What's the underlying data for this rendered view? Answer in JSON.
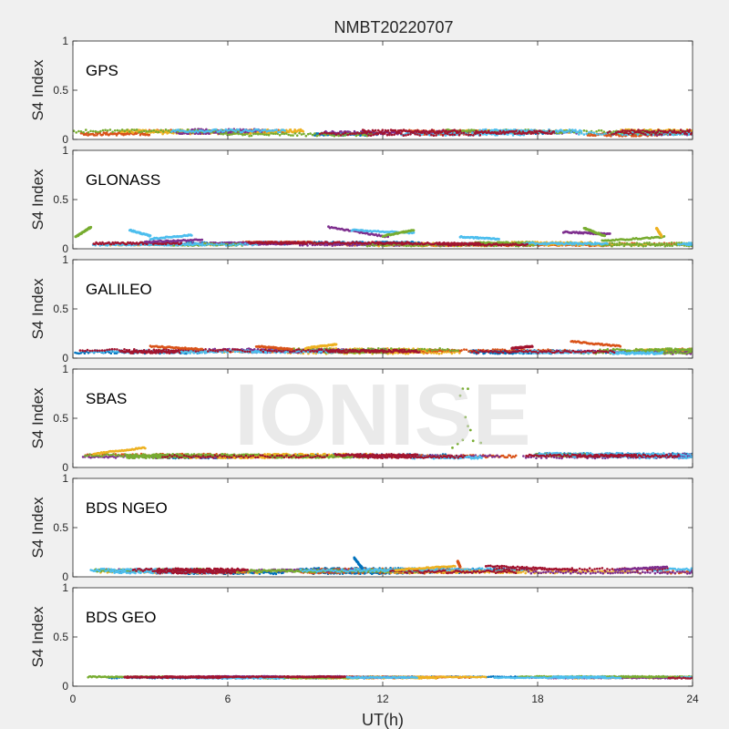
{
  "watermark": "IONISE",
  "chart_data": {
    "type": "scatter",
    "title": "NMBT20220707",
    "xlabel": "UT(h)",
    "xlim": [
      0,
      24
    ],
    "xticks": [
      0,
      6,
      12,
      18,
      24
    ],
    "colors": [
      "#0072BD",
      "#D95319",
      "#EDB120",
      "#7E2F8E",
      "#77AC30",
      "#4DBEEE",
      "#A2142F"
    ],
    "panels": [
      {
        "label": "GPS",
        "ylabel": "S4 Index",
        "ylim": [
          0,
          1
        ],
        "yticks": [
          0,
          0.5,
          1
        ],
        "baseline": 0.07,
        "noise": 0.03,
        "features": []
      },
      {
        "label": "GLONASS",
        "ylabel": "S4 Index",
        "ylim": [
          0,
          1
        ],
        "yticks": [
          0,
          0.5,
          1
        ],
        "baseline": 0.05,
        "noise": 0.02,
        "features": [
          {
            "x0": 0.1,
            "x1": 0.7,
            "y0": 0.12,
            "y1": 0.22,
            "series": 4
          },
          {
            "x0": 2.2,
            "x1": 3.0,
            "y0": 0.19,
            "y1": 0.13,
            "series": 5
          },
          {
            "x0": 3.0,
            "x1": 4.6,
            "y0": 0.1,
            "y1": 0.14,
            "series": 5
          },
          {
            "x0": 2.8,
            "x1": 5.0,
            "y0": 0.07,
            "y1": 0.09,
            "series": 3
          },
          {
            "x0": 9.9,
            "x1": 12.2,
            "y0": 0.22,
            "y1": 0.12,
            "series": 3
          },
          {
            "x0": 10.8,
            "x1": 13.2,
            "y0": 0.19,
            "y1": 0.16,
            "series": 5
          },
          {
            "x0": 12.0,
            "x1": 13.2,
            "y0": 0.13,
            "y1": 0.19,
            "series": 4
          },
          {
            "x0": 15.0,
            "x1": 16.5,
            "y0": 0.12,
            "y1": 0.1,
            "series": 5
          },
          {
            "x0": 19.0,
            "x1": 20.8,
            "y0": 0.17,
            "y1": 0.15,
            "series": 3
          },
          {
            "x0": 19.8,
            "x1": 20.6,
            "y0": 0.21,
            "y1": 0.13,
            "series": 4
          },
          {
            "x0": 20.5,
            "x1": 22.9,
            "y0": 0.08,
            "y1": 0.12,
            "series": 4
          },
          {
            "x0": 22.6,
            "x1": 22.8,
            "y0": 0.21,
            "y1": 0.13,
            "series": 2
          }
        ]
      },
      {
        "label": "GALILEO",
        "ylabel": "S4 Index",
        "ylim": [
          0,
          1
        ],
        "yticks": [
          0,
          0.5,
          1
        ],
        "baseline": 0.07,
        "noise": 0.025,
        "features": [
          {
            "x0": 3.0,
            "x1": 5.0,
            "y0": 0.12,
            "y1": 0.09,
            "series": 1
          },
          {
            "x0": 7.1,
            "x1": 8.5,
            "y0": 0.12,
            "y1": 0.09,
            "series": 1
          },
          {
            "x0": 9.0,
            "x1": 10.2,
            "y0": 0.1,
            "y1": 0.14,
            "series": 2
          },
          {
            "x0": 19.3,
            "x1": 21.2,
            "y0": 0.17,
            "y1": 0.12,
            "series": 1
          },
          {
            "x0": 17.0,
            "x1": 17.8,
            "y0": 0.1,
            "y1": 0.12,
            "series": 6
          }
        ]
      },
      {
        "label": "SBAS",
        "ylabel": "S4 Index",
        "ylim": [
          0,
          1
        ],
        "yticks": [
          0,
          0.5,
          1
        ],
        "baseline": 0.12,
        "noise": 0.025,
        "features": [
          {
            "x0": 0.8,
            "x1": 2.8,
            "y0": 0.14,
            "y1": 0.2,
            "series": 2
          }
        ],
        "points": [
          {
            "x": 15.1,
            "y": 0.8,
            "series": 4
          },
          {
            "x": 15.3,
            "y": 0.8,
            "series": 4
          },
          {
            "x": 15.0,
            "y": 0.73,
            "series": 4
          },
          {
            "x": 15.2,
            "y": 0.51,
            "series": 4
          },
          {
            "x": 15.3,
            "y": 0.42,
            "series": 4
          },
          {
            "x": 15.4,
            "y": 0.38,
            "series": 4
          },
          {
            "x": 15.1,
            "y": 0.28,
            "series": 4
          },
          {
            "x": 14.9,
            "y": 0.24,
            "series": 4
          },
          {
            "x": 15.5,
            "y": 0.27,
            "series": 4
          },
          {
            "x": 15.8,
            "y": 0.25,
            "series": 4
          },
          {
            "x": 14.7,
            "y": 0.2,
            "series": 4
          }
        ]
      },
      {
        "label": "BDS NGEO",
        "ylabel": "S4 Index",
        "ylim": [
          0,
          1
        ],
        "yticks": [
          0,
          0.5,
          1
        ],
        "baseline": 0.06,
        "noise": 0.025,
        "features": [
          {
            "x0": 10.9,
            "x1": 11.2,
            "y0": 0.19,
            "y1": 0.09,
            "series": 0
          },
          {
            "x0": 14.9,
            "x1": 15.0,
            "y0": 0.16,
            "y1": 0.1,
            "series": 1
          },
          {
            "x0": 12.5,
            "x1": 14.8,
            "y0": 0.07,
            "y1": 0.11,
            "series": 2
          },
          {
            "x0": 16.0,
            "x1": 19.5,
            "y0": 0.11,
            "y1": 0.07,
            "series": 6
          },
          {
            "x0": 21.0,
            "x1": 23.0,
            "y0": 0.07,
            "y1": 0.1,
            "series": 3
          }
        ]
      },
      {
        "label": "BDS GEO",
        "ylabel": "S4 Index",
        "ylim": [
          0,
          1
        ],
        "yticks": [
          0,
          0.5,
          1
        ],
        "baseline": 0.09,
        "noise": 0.01,
        "features": []
      }
    ]
  }
}
